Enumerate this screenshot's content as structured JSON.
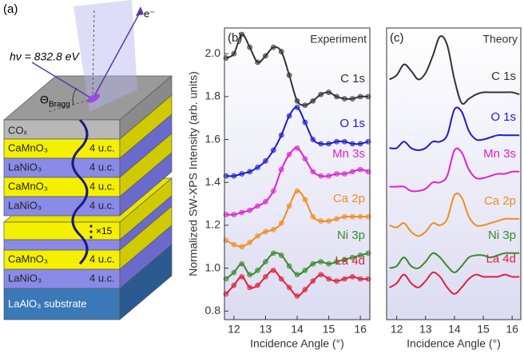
{
  "panel_a": {
    "label": "(a)",
    "photon": "hν = 832.8 eV",
    "electron": "e⁻",
    "angle": {
      "symbol": "Θ",
      "subscript": "Bragg"
    },
    "cap": "COₓ",
    "repeat": "×15",
    "layers": [
      {
        "name": "CaMnO₃",
        "thickness": "4 u.c."
      },
      {
        "name": "LaNiO₃",
        "thickness": "4 u.c."
      },
      {
        "name": "CaMnO₃",
        "thickness": "4 u.c."
      },
      {
        "name": "LaNiO₃",
        "thickness": "4 u.c."
      },
      {
        "name": "CaMnO₃",
        "thickness": "4 u.c."
      },
      {
        "name": "LaNiO₃",
        "thickness": "4 u.c."
      }
    ],
    "substrate": "LaAlO₃ substrate"
  },
  "chart_data": [
    {
      "type": "line",
      "markers": true,
      "panel": "(b)",
      "title": "Experiment",
      "x_label": "Incidence Angle (°)",
      "y_label": "Normalized SW-XPS Intensity (arb. units)",
      "x": [
        11.75,
        12,
        12.25,
        12.5,
        12.75,
        13,
        13.25,
        13.5,
        13.75,
        14,
        14.25,
        14.5,
        14.75,
        15,
        15.25,
        15.5,
        15.75,
        16,
        16.25
      ],
      "xlim": [
        11.7,
        16.3
      ],
      "xticks": [
        12,
        13,
        14,
        15,
        16
      ],
      "ylim": [
        0.76,
        2.12
      ],
      "yticks": [
        0.8,
        {
          "value": 1.0,
          "label": "1.0"
        },
        1.2,
        1.4,
        1.6,
        1.8,
        {
          "value": 2.0,
          "label": "2.0"
        }
      ],
      "series": [
        {
          "name": "C 1s",
          "color": "#333333",
          "values": [
            1.98,
            2.0,
            2.09,
            2.03,
            1.96,
            1.99,
            2.03,
            2.01,
            1.9,
            1.78,
            1.76,
            1.78,
            1.81,
            1.82,
            1.8,
            1.79,
            1.79,
            1.8,
            1.8
          ]
        },
        {
          "name": "O 1s",
          "color": "#1c1cd0",
          "values": [
            1.43,
            1.43,
            1.44,
            1.45,
            1.47,
            1.5,
            1.55,
            1.62,
            1.71,
            1.75,
            1.68,
            1.6,
            1.58,
            1.58,
            1.59,
            1.59,
            1.58,
            1.58,
            1.59
          ]
        },
        {
          "name": "Mn 3s",
          "color": "#e020d0",
          "values": [
            1.25,
            1.25,
            1.26,
            1.27,
            1.29,
            1.31,
            1.36,
            1.46,
            1.53,
            1.56,
            1.51,
            1.45,
            1.43,
            1.43,
            1.44,
            1.44,
            1.45,
            1.46,
            1.45
          ]
        },
        {
          "name": "Ca 2p",
          "color": "#f08c20",
          "values": [
            1.13,
            1.11,
            1.1,
            1.12,
            1.15,
            1.17,
            1.18,
            1.21,
            1.29,
            1.36,
            1.32,
            1.24,
            1.22,
            1.22,
            1.23,
            1.24,
            1.24,
            1.24,
            1.24
          ]
        },
        {
          "name": "Ni 3p",
          "color": "#3a8a2a",
          "values": [
            0.95,
            0.98,
            1.02,
            0.97,
            0.99,
            1.03,
            1.07,
            1.06,
            1.01,
            0.97,
            0.99,
            1.02,
            1.03,
            1.02,
            1.03,
            1.04,
            1.05,
            1.06,
            1.07
          ]
        },
        {
          "name": "La 4d",
          "color": "#e0203a",
          "values": [
            0.88,
            0.92,
            0.96,
            0.91,
            0.92,
            0.96,
            0.99,
            0.95,
            0.91,
            0.87,
            0.9,
            0.94,
            0.97,
            0.95,
            0.94,
            0.95,
            0.96,
            0.95,
            0.95
          ]
        }
      ]
    },
    {
      "type": "line",
      "markers": false,
      "panel": "(c)",
      "title": "Theory",
      "x_label": "Incidence Angle (°)",
      "x": [
        11.75,
        12,
        12.25,
        12.5,
        12.75,
        13,
        13.25,
        13.5,
        13.75,
        14,
        14.25,
        14.5,
        14.75,
        15,
        15.25,
        15.5,
        15.75,
        16,
        16.25
      ],
      "xlim": [
        11.65,
        16.3
      ],
      "xticks": [
        12,
        13,
        14,
        15,
        16
      ],
      "ylim": [
        0.76,
        2.12
      ],
      "series": [
        {
          "name": "C 1s",
          "color": "#333333",
          "values": [
            1.88,
            1.9,
            1.95,
            1.92,
            1.88,
            1.91,
            1.99,
            2.08,
            2.04,
            1.88,
            1.77,
            1.79,
            1.81,
            1.82,
            1.82,
            1.82,
            1.82,
            1.82,
            1.81
          ]
        },
        {
          "name": "O 1s",
          "color": "#1c1cd0",
          "values": [
            1.56,
            1.56,
            1.59,
            1.56,
            1.55,
            1.56,
            1.59,
            1.59,
            1.62,
            1.74,
            1.73,
            1.64,
            1.6,
            1.6,
            1.61,
            1.62,
            1.62,
            1.62,
            1.62
          ]
        },
        {
          "name": "Mn 3s",
          "color": "#e020d0",
          "values": [
            1.38,
            1.38,
            1.38,
            1.36,
            1.36,
            1.37,
            1.4,
            1.4,
            1.43,
            1.55,
            1.54,
            1.46,
            1.42,
            1.42,
            1.43,
            1.44,
            1.44,
            1.45,
            1.45
          ]
        },
        {
          "name": "Ca 2p",
          "color": "#f08c20",
          "values": [
            1.2,
            1.19,
            1.21,
            1.17,
            1.15,
            1.17,
            1.21,
            1.2,
            1.23,
            1.34,
            1.33,
            1.24,
            1.2,
            1.2,
            1.21,
            1.22,
            1.23,
            1.23,
            1.23
          ]
        },
        {
          "name": "Ni 3p",
          "color": "#3a8a2a",
          "values": [
            1.0,
            1.01,
            1.05,
            1.01,
            1.0,
            1.03,
            1.07,
            1.05,
            1.01,
            0.98,
            1.01,
            1.05,
            1.06,
            1.06,
            1.05,
            1.06,
            1.07,
            1.07,
            1.07
          ]
        },
        {
          "name": "La 4d",
          "color": "#e0203a",
          "values": [
            0.91,
            0.93,
            0.97,
            0.93,
            0.91,
            0.94,
            0.98,
            0.96,
            0.91,
            0.88,
            0.91,
            0.95,
            0.97,
            0.96,
            0.96,
            0.96,
            0.97,
            0.96,
            0.96
          ]
        }
      ]
    }
  ]
}
